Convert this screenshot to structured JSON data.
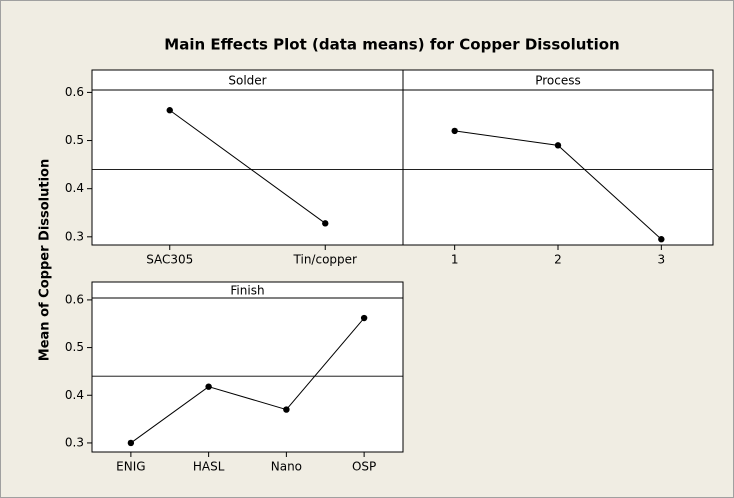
{
  "title": "Main Effects Plot (data means) for Copper Dissolution",
  "ylabel": "Mean of Copper Dissolution",
  "chart_data": [
    {
      "type": "line",
      "title": "Solder",
      "categories": [
        "SAC305",
        "Tin/copper"
      ],
      "values": [
        0.563,
        0.328
      ],
      "mean": 0.44,
      "ylim": [
        0.283,
        0.605
      ],
      "yticks": [
        0.3,
        0.4,
        0.5,
        0.6
      ],
      "color": "#000000"
    },
    {
      "type": "line",
      "title": "Process",
      "categories": [
        "1",
        "2",
        "3"
      ],
      "values": [
        0.52,
        0.49,
        0.295
      ],
      "mean": 0.44,
      "ylim": [
        0.283,
        0.605
      ],
      "color": "#000000"
    },
    {
      "type": "line",
      "title": "Finish",
      "categories": [
        "ENIG",
        "HASL",
        "Nano",
        "OSP"
      ],
      "values": [
        0.3,
        0.418,
        0.37,
        0.562
      ],
      "mean": 0.44,
      "ylim": [
        0.281,
        0.604
      ],
      "yticks": [
        0.3,
        0.4,
        0.5,
        0.6
      ],
      "color": "#000000"
    }
  ]
}
